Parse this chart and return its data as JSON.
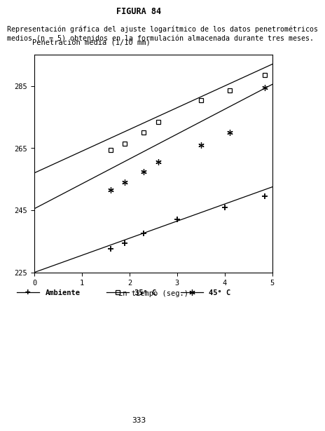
{
  "title": "FIGURA 84",
  "description_line1": "Representación gráfica del ajuste logarítmico de los datos penetrométricos",
  "description_line2": "medios (n = 5) obtenidos en la formulación almacenada durante tres meses.",
  "ylabel": "Penetración media (1/10 mm)",
  "xlabel": "Ln tiempo (seg.)",
  "xlim": [
    0,
    5
  ],
  "ylim": [
    225,
    295
  ],
  "yticks": [
    225,
    245,
    265,
    285
  ],
  "xticks": [
    0,
    1,
    2,
    3,
    4,
    5
  ],
  "page_number": "333",
  "ambiente": {
    "label": "Ambiente",
    "x_data": [
      1.6,
      1.9,
      2.3,
      3.0,
      4.0,
      4.85
    ],
    "y_data": [
      232.5,
      234.5,
      237.5,
      242.0,
      246.0,
      249.5
    ],
    "fit_x": [
      0.0,
      5.0
    ],
    "fit_y": [
      225.0,
      252.5
    ]
  },
  "temp35": {
    "label": "35° C",
    "x_data": [
      1.6,
      1.9,
      2.3,
      2.6,
      3.5,
      4.1,
      4.85
    ],
    "y_data": [
      264.5,
      266.5,
      270.0,
      273.5,
      280.5,
      283.5,
      288.5
    ],
    "fit_x": [
      0.0,
      5.0
    ],
    "fit_y": [
      257.0,
      292.0
    ]
  },
  "temp45": {
    "label": "45° C",
    "x_data": [
      1.6,
      1.9,
      2.3,
      2.6,
      3.5,
      4.1,
      4.85
    ],
    "y_data": [
      251.5,
      254.0,
      257.5,
      260.5,
      266.0,
      270.0,
      284.5
    ],
    "fit_x": [
      0.0,
      5.0
    ],
    "fit_y": [
      245.5,
      285.5
    ]
  },
  "background_color": "#ffffff",
  "text_color": "#000000"
}
